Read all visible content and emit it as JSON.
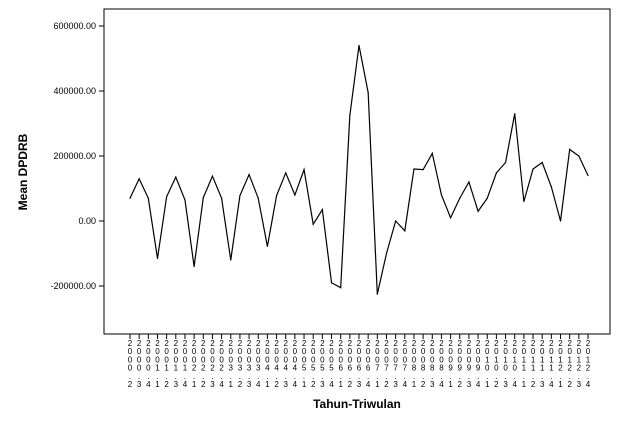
{
  "chart_data": {
    "type": "line",
    "title": "",
    "xlabel": "Tahun-Triwulan",
    "ylabel": "Mean DPDRB",
    "ylim": [
      -350000,
      650000
    ],
    "yticks": [
      600000,
      400000,
      200000,
      0,
      -200000
    ],
    "ytick_labels": [
      "600000.00",
      "400000.00",
      "200000.00",
      "0.00",
      "-200000.00"
    ],
    "grid": false,
    "legend": "none",
    "line_color": "#000000",
    "categories": [
      "2000.2",
      "2000.3",
      "2000.4",
      "2001.1",
      "2001.2",
      "2001.3",
      "2001.4",
      "2002.1",
      "2002.2",
      "2002.3",
      "2002.4",
      "2003.1",
      "2003.2",
      "2003.3",
      "2003.4",
      "2004.1",
      "2004.2",
      "2004.3",
      "2004.4",
      "2005.1",
      "2005.2",
      "2005.3",
      "2005.4",
      "2006.1",
      "2006.2",
      "2006.3",
      "2006.4",
      "2007.1",
      "2007.2",
      "2007.3",
      "2007.4",
      "2008.1",
      "2008.2",
      "2008.3",
      "2008.4",
      "2009.1",
      "2009.2",
      "2009.3",
      "2009.4",
      "2010.1",
      "2010.2",
      "2010.3",
      "2010.4",
      "2011.1",
      "2011.2",
      "2011.3",
      "2011.4",
      "2012.1",
      "2012.2",
      "2012.3",
      "2012.4"
    ],
    "values": [
      70000,
      130000,
      70000,
      -115000,
      75000,
      135000,
      65000,
      -140000,
      72000,
      138000,
      70000,
      -120000,
      78000,
      143000,
      70000,
      -78000,
      78000,
      148000,
      80000,
      158000,
      -10000,
      35000,
      -190000,
      -205000,
      325000,
      540000,
      395000,
      -225000,
      -100000,
      0,
      -30000,
      160000,
      158000,
      208000,
      80000,
      10000,
      70000,
      120000,
      30000,
      70000,
      148000,
      180000,
      330000,
      60000,
      160000,
      180000,
      105000,
      0,
      220000,
      200000,
      140000
    ]
  }
}
